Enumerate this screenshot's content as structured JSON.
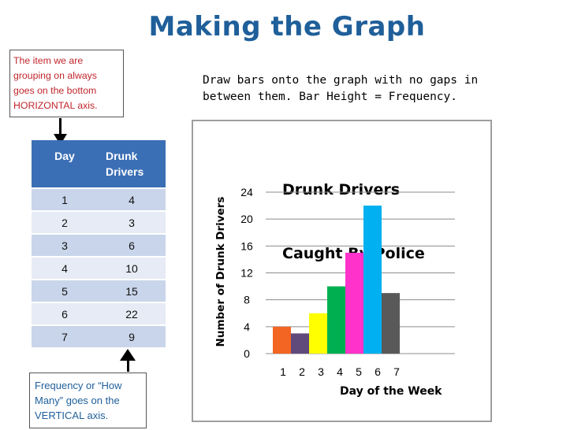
{
  "title": "Making the Graph",
  "note_top": "The item we are grouping on always goes on the bottom HORIZONTAL axis.",
  "note_bottom": "Frequency or “How Many” goes on the VERTICAL axis.",
  "instructions": {
    "line1": "Draw bars onto the graph with no gaps in",
    "line2": "between them. Bar Height = Frequency."
  },
  "table": {
    "headers": {
      "day": "Day",
      "drunk": "Drunk",
      "drivers": "Drivers"
    },
    "rows": [
      {
        "day": "1",
        "value": "4"
      },
      {
        "day": "2",
        "value": "3"
      },
      {
        "day": "3",
        "value": "6"
      },
      {
        "day": "4",
        "value": "10"
      },
      {
        "day": "5",
        "value": "15"
      },
      {
        "day": "6",
        "value": "22"
      },
      {
        "day": "7",
        "value": "9"
      }
    ]
  },
  "chart_data": {
    "type": "bar",
    "title_line1": "Drunk Drivers",
    "title_line2": "Caught By Police",
    "xlabel": "Day of the Week",
    "ylabel": "Number of Drunk Drivers",
    "categories": [
      "1",
      "2",
      "3",
      "4",
      "5",
      "6",
      "7"
    ],
    "values": [
      4,
      3,
      6,
      10,
      15,
      22,
      9
    ],
    "colors": [
      "#f26522",
      "#604a7b",
      "#ffff00",
      "#00b050",
      "#ff33cc",
      "#00b0f0",
      "#595959"
    ],
    "ylim": [
      0,
      24
    ],
    "yticks": [
      0,
      4,
      8,
      12,
      16,
      20,
      24
    ],
    "grid": true,
    "legend": "none"
  }
}
